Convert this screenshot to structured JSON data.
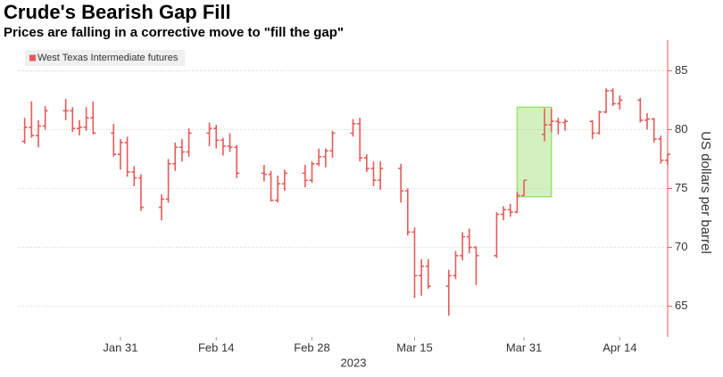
{
  "chart_data": {
    "type": "ohlc",
    "title": "Crude's Bearish Gap Fill",
    "subtitle": "Prices are falling in a corrective move to \"fill the gap\"",
    "ylabel": "US dollars per barrel",
    "xlabel": "2023",
    "x": [
      "2023-01-17",
      "2023-01-18",
      "2023-01-19",
      "2023-01-20",
      "2023-01-23",
      "2023-01-24",
      "2023-01-25",
      "2023-01-26",
      "2023-01-27",
      "2023-01-30",
      "2023-01-31",
      "2023-02-01",
      "2023-02-02",
      "2023-02-03",
      "2023-02-06",
      "2023-02-07",
      "2023-02-08",
      "2023-02-09",
      "2023-02-10",
      "2023-02-13",
      "2023-02-14",
      "2023-02-15",
      "2023-02-16",
      "2023-02-17",
      "2023-02-21",
      "2023-02-22",
      "2023-02-23",
      "2023-02-24",
      "2023-02-27",
      "2023-02-28",
      "2023-03-01",
      "2023-03-02",
      "2023-03-03",
      "2023-03-06",
      "2023-03-07",
      "2023-03-08",
      "2023-03-09",
      "2023-03-10",
      "2023-03-13",
      "2023-03-14",
      "2023-03-15",
      "2023-03-16",
      "2023-03-17",
      "2023-03-20",
      "2023-03-21",
      "2023-03-22",
      "2023-03-23",
      "2023-03-24",
      "2023-03-27",
      "2023-03-28",
      "2023-03-29",
      "2023-03-30",
      "2023-03-31",
      "2023-04-03",
      "2023-04-04",
      "2023-04-05",
      "2023-04-06",
      "2023-04-10",
      "2023-04-11",
      "2023-04-12",
      "2023-04-13",
      "2023-04-14",
      "2023-04-17",
      "2023-04-18",
      "2023-04-19",
      "2023-04-20",
      "2023-04-21"
    ],
    "series": [
      {
        "name": "West Texas Intermediate futures",
        "color": "#e8595a",
        "open": [
          79.0,
          80.2,
          79.5,
          80.3,
          81.6,
          81.6,
          80.1,
          80.2,
          81.0,
          79.7,
          77.9,
          78.9,
          76.4,
          75.9,
          73.4,
          74.1,
          77.1,
          78.5,
          78.1,
          79.7,
          80.1,
          79.1,
          78.6,
          78.5,
          76.3,
          76.2,
          74.0,
          75.4,
          76.3,
          75.7,
          77.1,
          77.7,
          78.2,
          79.7,
          80.5,
          77.6,
          76.7,
          75.7,
          76.7,
          74.8,
          71.3,
          67.6,
          68.4,
          66.7,
          67.6,
          69.3,
          70.9,
          70.0,
          69.3,
          72.8,
          73.2,
          73.0,
          74.4,
          79.6,
          80.4,
          80.7,
          80.6,
          80.7,
          79.7,
          81.5,
          83.3,
          82.2,
          82.5,
          80.8,
          80.9,
          79.2,
          77.4
        ],
        "high": [
          81.0,
          82.4,
          80.8,
          82.0,
          82.6,
          81.9,
          80.8,
          81.9,
          82.4,
          80.5,
          79.2,
          79.4,
          76.9,
          76.2,
          74.5,
          77.5,
          78.9,
          79.2,
          80.1,
          80.6,
          80.4,
          79.3,
          79.7,
          78.7,
          77.0,
          76.5,
          76.1,
          76.6,
          77.0,
          77.3,
          78.4,
          78.4,
          79.9,
          80.9,
          81.0,
          77.9,
          77.3,
          77.3,
          77.1,
          75.0,
          71.7,
          69.0,
          69.0,
          68.1,
          69.7,
          71.3,
          71.6,
          70.1,
          73.0,
          73.5,
          73.7,
          74.7,
          75.7,
          81.8,
          81.8,
          81.0,
          80.9,
          80.8,
          81.6,
          83.5,
          83.5,
          82.9,
          82.7,
          81.4,
          81.0,
          79.5,
          78.0
        ],
        "low": [
          78.8,
          79.3,
          78.5,
          80.0,
          80.8,
          79.8,
          79.5,
          79.9,
          79.6,
          77.7,
          76.6,
          76.0,
          75.2,
          73.1,
          72.3,
          73.8,
          76.5,
          77.3,
          77.7,
          78.6,
          78.4,
          77.8,
          78.1,
          75.9,
          75.6,
          73.9,
          73.8,
          74.8,
          75.1,
          75.5,
          76.9,
          76.8,
          77.6,
          79.4,
          77.3,
          76.4,
          75.2,
          74.9,
          73.8,
          71.0,
          65.7,
          65.9,
          66.5,
          64.2,
          67.3,
          68.9,
          69.5,
          66.8,
          69.1,
          72.3,
          72.6,
          72.9,
          74.4,
          79.0,
          79.8,
          79.6,
          79.9,
          79.2,
          79.6,
          81.4,
          82.0,
          81.7,
          80.6,
          80.0,
          78.9,
          77.1,
          77.0
        ],
        "close": [
          80.2,
          79.5,
          80.3,
          81.6,
          81.6,
          80.1,
          80.2,
          81.0,
          79.7,
          77.9,
          78.9,
          76.4,
          75.9,
          73.4,
          74.1,
          77.1,
          78.5,
          78.1,
          79.7,
          80.1,
          79.1,
          78.6,
          78.5,
          76.3,
          76.2,
          74.0,
          75.4,
          76.3,
          75.7,
          77.1,
          77.7,
          78.2,
          79.7,
          80.5,
          77.6,
          76.7,
          75.7,
          76.7,
          74.8,
          71.3,
          67.6,
          68.4,
          66.7,
          67.6,
          69.3,
          70.9,
          70.0,
          69.3,
          72.8,
          73.2,
          73.0,
          74.4,
          75.7,
          80.4,
          80.7,
          80.6,
          80.7,
          79.7,
          81.5,
          83.3,
          82.2,
          82.5,
          80.8,
          80.9,
          79.2,
          77.4,
          77.9
        ]
      }
    ],
    "highlight": {
      "x": [
        "2023-03-30",
        "2023-04-04"
      ],
      "y": [
        74.3,
        81.9
      ],
      "color": "#9be070"
    },
    "xlim": [
      "2023-01-16",
      "2023-04-21"
    ],
    "xticks": [
      {
        "value": "2023-01-31",
        "label": "Jan 31"
      },
      {
        "value": "2023-02-14",
        "label": "Feb 14"
      },
      {
        "value": "2023-02-28",
        "label": "Feb 28"
      },
      {
        "value": "2023-03-15",
        "label": "Mar 15"
      },
      {
        "value": "2023-03-31",
        "label": "Mar 31"
      },
      {
        "value": "2023-04-14",
        "label": "Apr 14"
      }
    ],
    "ylim": [
      62.4,
      87.6
    ],
    "yticks": [
      65,
      70,
      75,
      80,
      85
    ],
    "grid": true,
    "legend": "top-left"
  }
}
